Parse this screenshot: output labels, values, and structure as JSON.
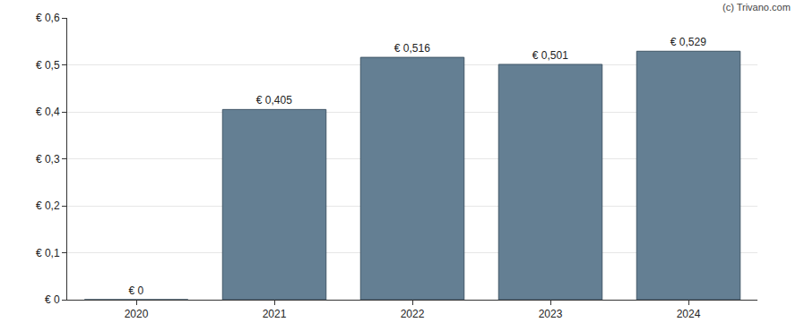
{
  "chart_data": {
    "type": "bar",
    "categories": [
      "2020",
      "2021",
      "2022",
      "2023",
      "2024"
    ],
    "values": [
      0,
      0.405,
      0.516,
      0.501,
      0.529
    ],
    "value_labels": [
      "€ 0",
      "€ 0,405",
      "€ 0,516",
      "€ 0,501",
      "€ 0,529"
    ],
    "color": "#647f93",
    "ylim": [
      0,
      0.6
    ],
    "yticks": [
      {
        "value": 0,
        "label": "€ 0"
      },
      {
        "value": 0.1,
        "label": "€ 0,1"
      },
      {
        "value": 0.2,
        "label": "€ 0,2"
      },
      {
        "value": 0.3,
        "label": "€ 0,3"
      },
      {
        "value": 0.4,
        "label": "€ 0,4"
      },
      {
        "value": 0.5,
        "label": "€ 0,5"
      },
      {
        "value": 0.6,
        "label": "€ 0,6"
      }
    ],
    "grid": true,
    "data_labels": true,
    "annotations": [
      "(c) Trivano.com"
    ]
  }
}
